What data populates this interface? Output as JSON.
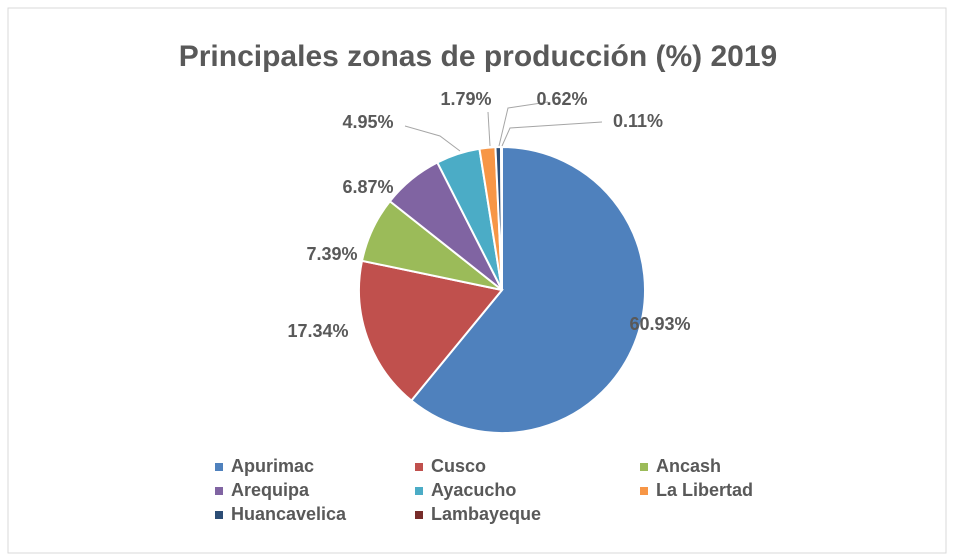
{
  "chart_data": {
    "type": "pie",
    "title": "Principales zonas de producción (%) 2019",
    "categories": [
      "Apurimac",
      "Cusco",
      "Ancash",
      "Arequipa",
      "Ayacucho",
      "La Libertad",
      "Huancavelica",
      "Lambayeque"
    ],
    "values": [
      60.93,
      17.34,
      7.39,
      6.87,
      4.95,
      1.79,
      0.62,
      0.11
    ],
    "value_labels": [
      "60.93%",
      "17.34%",
      "7.39%",
      "6.87%",
      "4.95%",
      "1.79%",
      "0.62%",
      "0.11%"
    ],
    "colors": [
      "#4f81bd",
      "#c0504d",
      "#9bbb59",
      "#8064a2",
      "#4bacc6",
      "#f79646",
      "#2c4d75",
      "#772c2a"
    ],
    "legend": "bottom"
  }
}
